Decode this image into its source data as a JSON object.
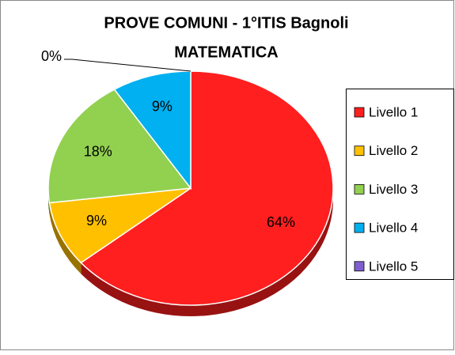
{
  "chart_data": {
    "type": "pie",
    "title": [
      "PROVE COMUNI  - 1°ITIS Bagnoli",
      "MATEMATICA"
    ],
    "categories": [
      "Livello 1",
      "Livello 2",
      "Livello 3",
      "Livello 4",
      "Livello 5"
    ],
    "values": [
      64,
      9,
      18,
      9,
      0
    ],
    "value_labels": [
      "64%",
      "9%",
      "18%",
      "9%",
      "0%"
    ],
    "colors": [
      "#ff1f1f",
      "#ffc000",
      "#92d050",
      "#00b0f0",
      "#7f5fd0"
    ],
    "legend": "right"
  }
}
